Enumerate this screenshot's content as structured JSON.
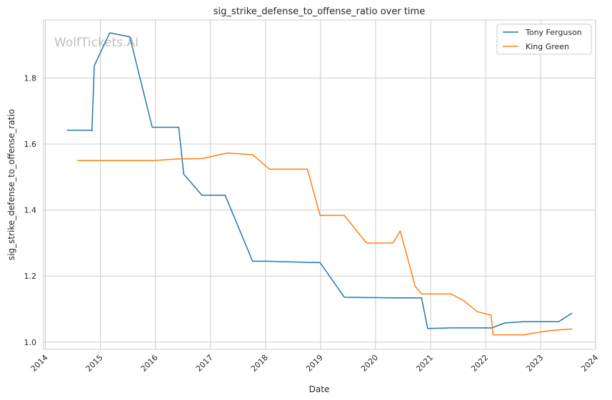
{
  "chart_data": {
    "type": "line",
    "title": "sig_strike_defense_to_offense_ratio over time",
    "xlabel": "Date",
    "ylabel": "sig_strike_defense_to_offense_ratio",
    "watermark": "WolfTickets.AI",
    "xlim": [
      "2013-12-20",
      "2023-12-31"
    ],
    "ylim": [
      0.978,
      1.976
    ],
    "x_ticks": [
      "2014",
      "2015",
      "2016",
      "2017",
      "2018",
      "2019",
      "2020",
      "2021",
      "2022",
      "2023",
      "2024"
    ],
    "y_ticks": [
      "1.0",
      "1.2",
      "1.4",
      "1.6",
      "1.8"
    ],
    "grid": true,
    "legend_position": "top-right",
    "series": [
      {
        "name": "Tony Ferguson",
        "color": "#1f77b4",
        "points": [
          [
            "2014-05-24",
            1.642
          ],
          [
            "2014-11-06",
            1.642
          ],
          [
            "2014-11-06",
            1.64
          ],
          [
            "2014-11-22",
            1.838
          ],
          [
            "2015-03-04",
            1.937
          ],
          [
            "2015-07-15",
            1.925
          ],
          [
            "2015-12-11",
            1.651
          ],
          [
            "2016-06-04",
            1.651
          ],
          [
            "2016-07-07",
            1.509
          ],
          [
            "2016-11-05",
            1.445
          ],
          [
            "2017-04-08",
            1.445
          ],
          [
            "2017-10-07",
            1.245
          ],
          [
            "2018-01-10",
            1.245
          ],
          [
            "2018-12-01",
            1.241
          ],
          [
            "2018-12-29",
            1.241
          ],
          [
            "2019-06-08",
            1.136
          ],
          [
            "2020-05-09",
            1.134
          ],
          [
            "2020-11-01",
            1.134
          ],
          [
            "2020-12-12",
            1.041
          ],
          [
            "2021-05-15",
            1.043
          ],
          [
            "2022-02-10",
            1.043
          ],
          [
            "2022-05-07",
            1.058
          ],
          [
            "2022-09-10",
            1.062
          ],
          [
            "2023-04-30",
            1.062
          ],
          [
            "2023-07-29",
            1.088
          ]
        ]
      },
      {
        "name": "King Green",
        "color": "#ff7f0e",
        "points": [
          [
            "2014-08-02",
            1.55
          ],
          [
            "2015-12-11",
            1.55
          ],
          [
            "2016-06-04",
            1.555
          ],
          [
            "2016-11-05",
            1.556
          ],
          [
            "2017-04-22",
            1.573
          ],
          [
            "2017-10-07",
            1.568
          ],
          [
            "2018-01-27",
            1.524
          ],
          [
            "2018-10-06",
            1.524
          ],
          [
            "2018-12-29",
            1.384
          ],
          [
            "2019-06-08",
            1.384
          ],
          [
            "2019-11-02",
            1.3
          ],
          [
            "2020-04-26",
            1.3
          ],
          [
            "2020-06-13",
            1.337
          ],
          [
            "2020-09-19",
            1.17
          ],
          [
            "2020-11-01",
            1.146
          ],
          [
            "2021-05-15",
            1.146
          ],
          [
            "2021-08-07",
            1.126
          ],
          [
            "2021-11-06",
            1.092
          ],
          [
            "2022-02-05",
            1.082
          ],
          [
            "2022-02-19",
            1.022
          ],
          [
            "2022-09-10",
            1.022
          ],
          [
            "2023-03-04",
            1.035
          ],
          [
            "2023-07-29",
            1.04
          ]
        ]
      }
    ]
  }
}
